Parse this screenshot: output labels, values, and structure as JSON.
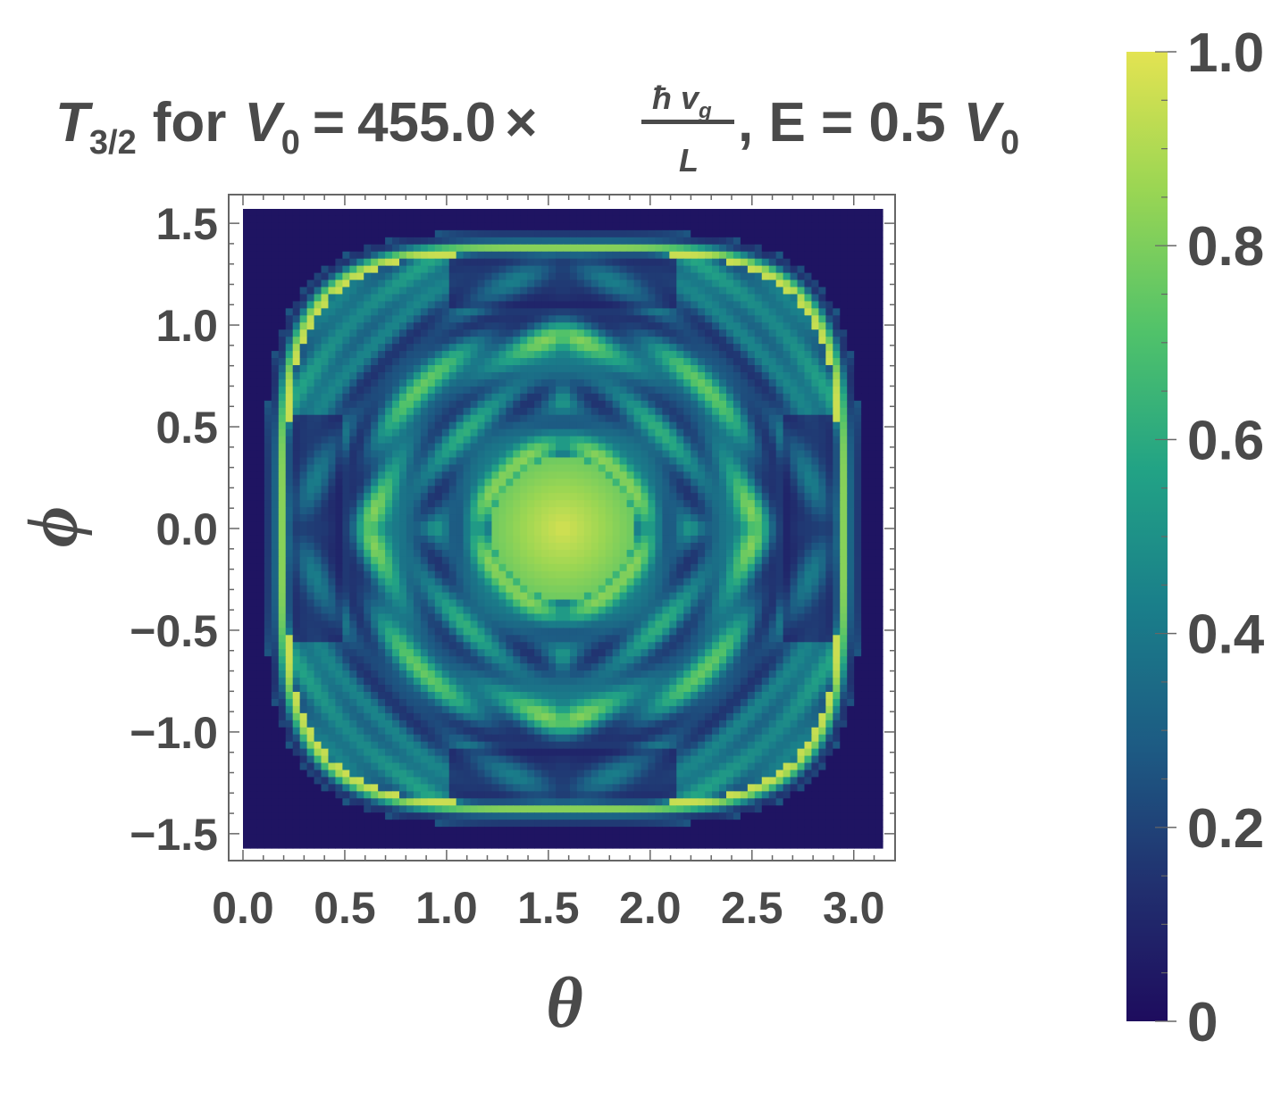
{
  "chart_data": {
    "type": "heatmap",
    "title": {
      "symbol": "T",
      "subscript": "3/2",
      "for_text": "for",
      "v0_symbol": "V",
      "v0_sub": "0",
      "equals": "=",
      "value": "455.0",
      "times": "×",
      "frac_numerator": "ħ v",
      "frac_numerator_sub": "g",
      "frac_denominator": "L",
      "energy_text": ", E = 0.5",
      "energy_unit_symbol": "V",
      "energy_unit_sub": "0"
    },
    "xlabel": "θ",
    "ylabel": "ϕ",
    "x_range": [
      0,
      3.1416
    ],
    "y_range": [
      -1.5708,
      1.5708
    ],
    "x_ticks": [
      "0.0",
      "0.5",
      "1.0",
      "1.5",
      "2.0",
      "2.5",
      "3.0"
    ],
    "x_tick_values": [
      0.0,
      0.5,
      1.0,
      1.5,
      2.0,
      2.5,
      3.0
    ],
    "y_ticks": [
      "1.5",
      "1.0",
      "0.5",
      "0.0",
      "−0.5",
      "−1.0",
      "−1.5"
    ],
    "y_tick_values": [
      1.5,
      1.0,
      0.5,
      0.0,
      -0.5,
      -1.0,
      -1.5
    ],
    "colorbar": {
      "min": 0,
      "max": 1,
      "ticks": [
        "1.0",
        "0.8",
        "0.6",
        "0.4",
        "0.2",
        "0"
      ],
      "tick_values": [
        1.0,
        0.8,
        0.6,
        0.4,
        0.2,
        0.0
      ],
      "colormap": "viridis"
    },
    "description_values": {
      "center_peak": 1.0,
      "outer_corners": 0.0
    }
  },
  "colors": {
    "text": "#4a4a4a",
    "frame": "#666666",
    "viridis": [
      "#1e0c5e",
      "#21306f",
      "#1d5a83",
      "#1a7f8a",
      "#22a385",
      "#50c26a",
      "#9bd653",
      "#e3e352"
    ]
  }
}
